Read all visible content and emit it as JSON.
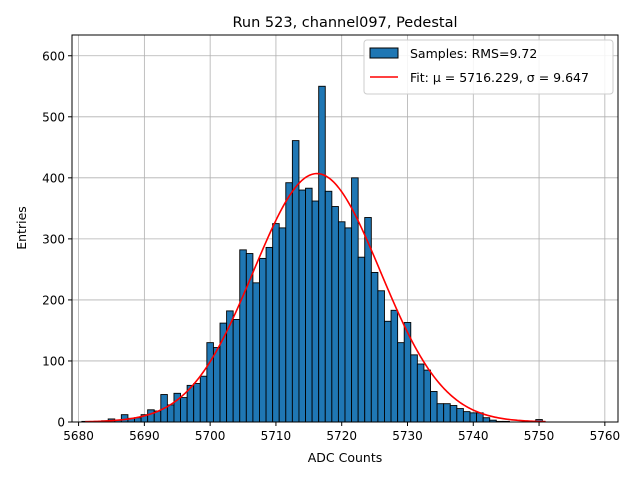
{
  "chart_data": {
    "type": "bar",
    "title": "Run 523, channel097, Pedestal",
    "xlabel": "ADC Counts",
    "ylabel": "Entries",
    "xlim": [
      5679,
      5762
    ],
    "ylim": [
      0,
      634
    ],
    "xticks": [
      5680,
      5690,
      5700,
      5710,
      5720,
      5730,
      5740,
      5750,
      5760
    ],
    "yticks": [
      0,
      100,
      200,
      300,
      400,
      500,
      600
    ],
    "grid": true,
    "legend_position": "top-right",
    "legend": [
      {
        "label": "Samples: RMS=9.72",
        "kind": "patch"
      },
      {
        "label": "Fit: μ = 5716.229, σ = 9.647",
        "kind": "line"
      }
    ],
    "bin_width": 1,
    "bins": [
      {
        "x": 5681,
        "y": 1
      },
      {
        "x": 5682,
        "y": 0
      },
      {
        "x": 5683,
        "y": 1
      },
      {
        "x": 5684,
        "y": 2
      },
      {
        "x": 5685,
        "y": 5
      },
      {
        "x": 5686,
        "y": 3
      },
      {
        "x": 5687,
        "y": 12
      },
      {
        "x": 5688,
        "y": 6
      },
      {
        "x": 5689,
        "y": 7
      },
      {
        "x": 5690,
        "y": 12
      },
      {
        "x": 5691,
        "y": 20
      },
      {
        "x": 5692,
        "y": 18
      },
      {
        "x": 5693,
        "y": 45
      },
      {
        "x": 5694,
        "y": 28
      },
      {
        "x": 5695,
        "y": 47
      },
      {
        "x": 5696,
        "y": 40
      },
      {
        "x": 5697,
        "y": 60
      },
      {
        "x": 5698,
        "y": 63
      },
      {
        "x": 5699,
        "y": 75
      },
      {
        "x": 5700,
        "y": 130
      },
      {
        "x": 5701,
        "y": 122
      },
      {
        "x": 5702,
        "y": 162
      },
      {
        "x": 5703,
        "y": 182
      },
      {
        "x": 5704,
        "y": 168
      },
      {
        "x": 5705,
        "y": 282
      },
      {
        "x": 5706,
        "y": 276
      },
      {
        "x": 5707,
        "y": 228
      },
      {
        "x": 5708,
        "y": 268
      },
      {
        "x": 5709,
        "y": 286
      },
      {
        "x": 5710,
        "y": 325
      },
      {
        "x": 5711,
        "y": 318
      },
      {
        "x": 5712,
        "y": 392
      },
      {
        "x": 5713,
        "y": 461
      },
      {
        "x": 5714,
        "y": 380
      },
      {
        "x": 5715,
        "y": 383
      },
      {
        "x": 5716,
        "y": 362
      },
      {
        "x": 5717,
        "y": 550
      },
      {
        "x": 5718,
        "y": 378
      },
      {
        "x": 5719,
        "y": 353
      },
      {
        "x": 5720,
        "y": 328
      },
      {
        "x": 5721,
        "y": 318
      },
      {
        "x": 5722,
        "y": 400
      },
      {
        "x": 5723,
        "y": 270
      },
      {
        "x": 5724,
        "y": 335
      },
      {
        "x": 5725,
        "y": 245
      },
      {
        "x": 5726,
        "y": 215
      },
      {
        "x": 5727,
        "y": 165
      },
      {
        "x": 5728,
        "y": 183
      },
      {
        "x": 5729,
        "y": 130
      },
      {
        "x": 5730,
        "y": 163
      },
      {
        "x": 5731,
        "y": 110
      },
      {
        "x": 5732,
        "y": 95
      },
      {
        "x": 5733,
        "y": 85
      },
      {
        "x": 5734,
        "y": 50
      },
      {
        "x": 5735,
        "y": 30
      },
      {
        "x": 5736,
        "y": 30
      },
      {
        "x": 5737,
        "y": 27
      },
      {
        "x": 5738,
        "y": 22
      },
      {
        "x": 5739,
        "y": 17
      },
      {
        "x": 5740,
        "y": 15
      },
      {
        "x": 5741,
        "y": 15
      },
      {
        "x": 5742,
        "y": 7
      },
      {
        "x": 5743,
        "y": 3
      },
      {
        "x": 5744,
        "y": 1
      },
      {
        "x": 5745,
        "y": 1
      },
      {
        "x": 5746,
        "y": 0
      },
      {
        "x": 5747,
        "y": 0
      },
      {
        "x": 5748,
        "y": 0
      },
      {
        "x": 5749,
        "y": 0
      },
      {
        "x": 5750,
        "y": 4
      }
    ],
    "fit": {
      "mu": 5716.229,
      "sigma": 9.647,
      "amplitude": 407,
      "x_range": [
        5681,
        5751
      ]
    },
    "colors": {
      "bar_fill": "#1f77b4",
      "bar_edge": "#000000",
      "fit_line": "#ff0000",
      "grid": "#b0b0b0"
    }
  }
}
